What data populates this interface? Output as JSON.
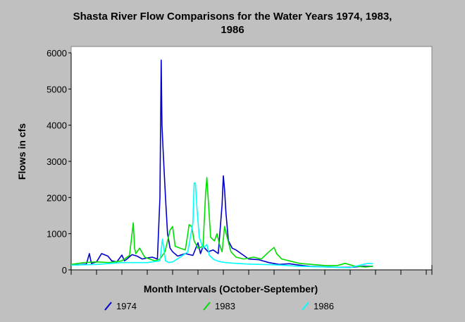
{
  "chart_data": {
    "type": "line",
    "title_line1": "Shasta River Flow Comparisons for the Water Years 1974, 1983,",
    "title_line2": "1986",
    "xlabel": "Month Intervals (October-September)",
    "ylabel": "Flows in cfs",
    "ylim": [
      0,
      6000
    ],
    "yticks": [
      0,
      1000,
      2000,
      3000,
      4000,
      5000,
      6000
    ],
    "x_unit": "month (0 = Oct 1, 12 = Sep 30)",
    "xlim": [
      0,
      12
    ],
    "grid": false,
    "legend": "bottom",
    "series": [
      {
        "name": "1974",
        "color": "#0000cc",
        "x": [
          0,
          0.3,
          0.6,
          0.72,
          0.76,
          0.8,
          1.0,
          1.2,
          1.45,
          1.6,
          1.8,
          2.0,
          2.1,
          2.2,
          2.4,
          2.6,
          2.8,
          3.0,
          3.2,
          3.4,
          3.5,
          3.55,
          3.58,
          3.62,
          3.66,
          3.72,
          3.8,
          3.9,
          4.0,
          4.2,
          4.5,
          4.8,
          5.0,
          5.1,
          5.2,
          5.4,
          5.6,
          5.8,
          5.95,
          6.0,
          6.05,
          6.1,
          6.2,
          6.35,
          6.5,
          6.7,
          7.0,
          7.4,
          7.8,
          8.2,
          8.6,
          9.0,
          9.4,
          9.8,
          10.2,
          10.6,
          11.0,
          11.5,
          11.9
        ],
        "y": [
          150,
          140,
          160,
          450,
          300,
          180,
          220,
          450,
          380,
          250,
          220,
          410,
          250,
          300,
          420,
          380,
          300,
          330,
          350,
          300,
          2000,
          5800,
          4000,
          3400,
          2800,
          2000,
          1000,
          600,
          500,
          380,
          450,
          400,
          750,
          450,
          650,
          500,
          550,
          450,
          1800,
          2600,
          2200,
          1600,
          800,
          600,
          550,
          450,
          300,
          280,
          200,
          150,
          170,
          130,
          100,
          90,
          80,
          70,
          70,
          100,
          100
        ]
      },
      {
        "name": "1983",
        "color": "#00dd00",
        "x": [
          0,
          0.5,
          1.0,
          1.5,
          2.0,
          2.3,
          2.45,
          2.5,
          2.55,
          2.7,
          2.9,
          3.1,
          3.3,
          3.5,
          3.7,
          3.9,
          4.0,
          4.1,
          4.3,
          4.5,
          4.6,
          4.65,
          4.75,
          4.85,
          5.0,
          5.2,
          5.3,
          5.35,
          5.4,
          5.5,
          5.65,
          5.75,
          5.85,
          5.95,
          6.05,
          6.15,
          6.3,
          6.5,
          6.8,
          7.2,
          7.5,
          7.8,
          8.0,
          8.1,
          8.3,
          8.6,
          9.0,
          9.5,
          10.0,
          10.5,
          10.8,
          11.2,
          11.6,
          11.9
        ],
        "y": [
          150,
          200,
          220,
          200,
          250,
          400,
          1300,
          600,
          450,
          600,
          350,
          300,
          250,
          300,
          500,
          1100,
          1200,
          650,
          600,
          550,
          1000,
          1250,
          1200,
          800,
          600,
          650,
          2100,
          2550,
          2000,
          900,
          800,
          1000,
          700,
          500,
          1200,
          900,
          500,
          350,
          300,
          350,
          300,
          500,
          620,
          450,
          300,
          250,
          180,
          150,
          120,
          120,
          180,
          100,
          80,
          100
        ]
      },
      {
        "name": "1986",
        "color": "#00ffff",
        "x": [
          0,
          1.0,
          2.0,
          3.0,
          3.5,
          3.6,
          3.65,
          3.72,
          3.85,
          4.0,
          4.3,
          4.6,
          4.8,
          4.85,
          4.9,
          4.95,
          5.05,
          5.2,
          5.35,
          5.45,
          5.6,
          5.75,
          5.9,
          6.1,
          6.5,
          7.0,
          7.5,
          8.0,
          8.5,
          9.0,
          9.5,
          10.0,
          10.5,
          11.0,
          11.5,
          11.7,
          11.9
        ],
        "y": [
          130,
          150,
          200,
          200,
          250,
          850,
          600,
          250,
          200,
          220,
          350,
          500,
          1300,
          2400,
          2400,
          1800,
          900,
          600,
          700,
          400,
          300,
          250,
          220,
          200,
          180,
          160,
          150,
          140,
          120,
          100,
          90,
          80,
          70,
          60,
          150,
          180,
          170
        ]
      }
    ]
  }
}
